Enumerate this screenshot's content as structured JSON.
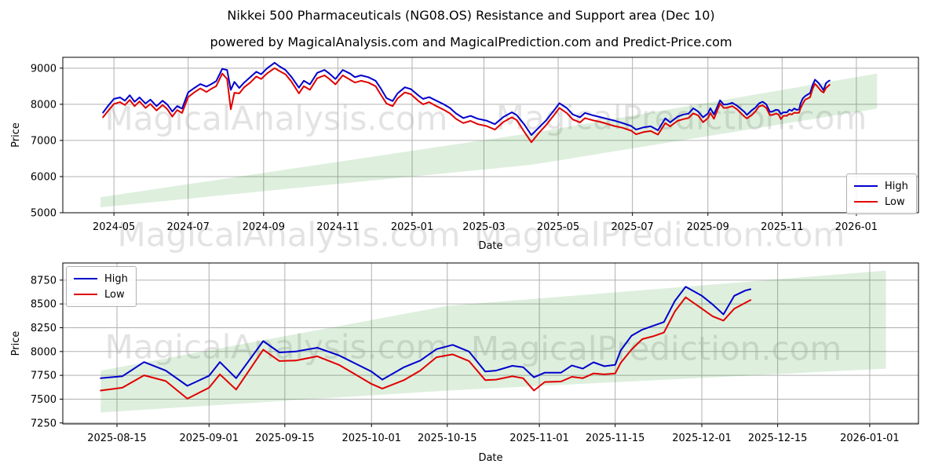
{
  "page": {
    "title": "Nikkei 500 Pharmaceuticals (NG08.OS) Resistance and Support area (Dec 10)",
    "subtitle": "powered by MagicalAnalysis.com and MagicalPrediction.com and Predict-Price.com"
  },
  "watermarks": {
    "analysis": "MagicalAnalysis.com",
    "prediction": "MagicalPrediction.com"
  },
  "colors": {
    "high": "#0000cc",
    "low": "#e00000",
    "band_fill": "#008000",
    "band_opacity": "0.13",
    "grid": "#b0b0b0",
    "spine": "#000000",
    "text": "#000000"
  },
  "chart_data": [
    {
      "type": "line",
      "xlabel": "Date",
      "ylabel": "Price",
      "xlim": [
        "2024-03-20",
        "2026-02-21"
      ],
      "ylim": [
        5000,
        9300
      ],
      "yticks": [
        5000,
        6000,
        7000,
        8000,
        9000
      ],
      "xticks": [
        {
          "date": "2024-05-01",
          "label": "2024-05"
        },
        {
          "date": "2024-07-01",
          "label": "2024-07"
        },
        {
          "date": "2024-09-01",
          "label": "2024-09"
        },
        {
          "date": "2024-11-01",
          "label": "2024-11"
        },
        {
          "date": "2025-01-01",
          "label": "2025-01"
        },
        {
          "date": "2025-03-01",
          "label": "2025-03"
        },
        {
          "date": "2025-05-01",
          "label": "2025-05"
        },
        {
          "date": "2025-07-01",
          "label": "2025-07"
        },
        {
          "date": "2025-09-01",
          "label": "2025-09"
        },
        {
          "date": "2025-11-01",
          "label": "2025-11"
        },
        {
          "date": "2026-01-01",
          "label": "2026-01"
        }
      ],
      "legend": {
        "position": "lower-right"
      },
      "band": {
        "dates": [
          "2024-04-20",
          "2025-04-10",
          "2026-01-18"
        ],
        "top": [
          5430,
          7210,
          8850
        ],
        "bottom": [
          5150,
          6330,
          7880
        ]
      },
      "dates": [
        "2024-04-22",
        "2024-04-26",
        "2024-05-01",
        "2024-05-06",
        "2024-05-10",
        "2024-05-14",
        "2024-05-18",
        "2024-05-22",
        "2024-05-27",
        "2024-05-31",
        "2024-06-05",
        "2024-06-10",
        "2024-06-14",
        "2024-06-18",
        "2024-06-22",
        "2024-06-26",
        "2024-07-01",
        "2024-07-06",
        "2024-07-11",
        "2024-07-16",
        "2024-07-20",
        "2024-07-24",
        "2024-07-29",
        "2024-08-02",
        "2024-08-05",
        "2024-08-08",
        "2024-08-12",
        "2024-08-16",
        "2024-08-21",
        "2024-08-26",
        "2024-08-30",
        "2024-09-04",
        "2024-09-10",
        "2024-09-14",
        "2024-09-19",
        "2024-09-24",
        "2024-09-30",
        "2024-10-04",
        "2024-10-09",
        "2024-10-15",
        "2024-10-21",
        "2024-10-25",
        "2024-10-30",
        "2024-11-05",
        "2024-11-11",
        "2024-11-15",
        "2024-11-20",
        "2024-11-26",
        "2024-12-02",
        "2024-12-06",
        "2024-12-11",
        "2024-12-16",
        "2024-12-20",
        "2024-12-26",
        "2024-12-31",
        "2025-01-06",
        "2025-01-10",
        "2025-01-15",
        "2025-01-21",
        "2025-01-27",
        "2025-02-01",
        "2025-02-06",
        "2025-02-12",
        "2025-02-18",
        "2025-02-24",
        "2025-03-03",
        "2025-03-10",
        "2025-03-17",
        "2025-03-24",
        "2025-03-28",
        "2025-04-03",
        "2025-04-09",
        "2025-04-15",
        "2025-04-21",
        "2025-04-28",
        "2025-05-02",
        "2025-05-08",
        "2025-05-13",
        "2025-05-19",
        "2025-05-23",
        "2025-05-29",
        "2025-06-04",
        "2025-06-10",
        "2025-06-16",
        "2025-06-23",
        "2025-06-30",
        "2025-07-04",
        "2025-07-10",
        "2025-07-16",
        "2025-07-22",
        "2025-07-28",
        "2025-08-01",
        "2025-08-07",
        "2025-08-12",
        "2025-08-16",
        "2025-08-20",
        "2025-08-24",
        "2025-08-28",
        "2025-09-01",
        "2025-09-03",
        "2025-09-06",
        "2025-09-11",
        "2025-09-14",
        "2025-09-17",
        "2025-09-21",
        "2025-09-25",
        "2025-09-28",
        "2025-10-01",
        "2025-10-03",
        "2025-10-07",
        "2025-10-10",
        "2025-10-13",
        "2025-10-16",
        "2025-10-19",
        "2025-10-22",
        "2025-10-24",
        "2025-10-27",
        "2025-10-29",
        "2025-10-31",
        "2025-11-02",
        "2025-11-05",
        "2025-11-07",
        "2025-11-09",
        "2025-11-11",
        "2025-11-13",
        "2025-11-15",
        "2025-11-16",
        "2025-11-18",
        "2025-11-20",
        "2025-11-22",
        "2025-11-24",
        "2025-11-26",
        "2025-11-28",
        "2025-12-01",
        "2025-12-03",
        "2025-12-05",
        "2025-12-07",
        "2025-12-09",
        "2025-12-10"
      ],
      "series": [
        {
          "name": "High",
          "color_key": "high",
          "values": [
            7770,
            7950,
            8150,
            8190,
            8100,
            8250,
            8070,
            8190,
            8020,
            8130,
            7950,
            8100,
            7990,
            7800,
            7950,
            7880,
            8330,
            8450,
            8560,
            8490,
            8560,
            8640,
            8980,
            8950,
            8400,
            8620,
            8450,
            8600,
            8750,
            8900,
            8830,
            9000,
            9150,
            9050,
            8950,
            8750,
            8460,
            8650,
            8550,
            8870,
            8950,
            8850,
            8700,
            8950,
            8850,
            8750,
            8800,
            8750,
            8650,
            8450,
            8170,
            8090,
            8300,
            8470,
            8420,
            8250,
            8150,
            8200,
            8100,
            8000,
            7900,
            7750,
            7620,
            7680,
            7600,
            7550,
            7450,
            7650,
            7780,
            7700,
            7450,
            7150,
            7350,
            7550,
            7850,
            8030,
            7900,
            7720,
            7640,
            7760,
            7700,
            7650,
            7600,
            7550,
            7480,
            7400,
            7300,
            7360,
            7390,
            7280,
            7610,
            7500,
            7655,
            7720,
            7740,
            7890,
            7800,
            7640,
            7745,
            7890,
            7720,
            8110,
            7990,
            8000,
            8040,
            7960,
            7875,
            7790,
            7705,
            7835,
            7905,
            8025,
            8070,
            8000,
            7790,
            7800,
            7850,
            7836,
            7730,
            7778,
            7778,
            7853,
            7820,
            7887,
            7846,
            7860,
            8010,
            8165,
            8230,
            8270,
            8310,
            8530,
            8680,
            8585,
            8495,
            8390,
            8585,
            8640,
            8655
          ]
        },
        {
          "name": "Low",
          "color_key": "low",
          "values": [
            7640,
            7810,
            8010,
            8060,
            7980,
            8120,
            7950,
            8080,
            7900,
            8010,
            7830,
            7980,
            7860,
            7660,
            7840,
            7760,
            8200,
            8330,
            8440,
            8340,
            8430,
            8500,
            8850,
            8700,
            7860,
            8320,
            8300,
            8470,
            8600,
            8770,
            8700,
            8860,
            9000,
            8920,
            8830,
            8620,
            8300,
            8500,
            8400,
            8720,
            8800,
            8700,
            8550,
            8800,
            8680,
            8600,
            8650,
            8600,
            8500,
            8280,
            8020,
            7950,
            8160,
            8330,
            8280,
            8100,
            8000,
            8060,
            7950,
            7850,
            7750,
            7600,
            7480,
            7540,
            7450,
            7400,
            7300,
            7510,
            7640,
            7560,
            7250,
            6950,
            7200,
            7420,
            7720,
            7900,
            7760,
            7580,
            7500,
            7620,
            7560,
            7520,
            7460,
            7400,
            7350,
            7270,
            7170,
            7230,
            7260,
            7160,
            7480,
            7390,
            7540,
            7590,
            7620,
            7750,
            7690,
            7505,
            7620,
            7760,
            7600,
            8020,
            7900,
            7905,
            7950,
            7860,
            7760,
            7660,
            7610,
            7700,
            7800,
            7940,
            7970,
            7900,
            7700,
            7705,
            7740,
            7720,
            7590,
            7680,
            7685,
            7735,
            7720,
            7770,
            7760,
            7770,
            7880,
            8020,
            8130,
            8160,
            8200,
            8420,
            8570,
            8450,
            8370,
            8325,
            8450,
            8510,
            8540
          ]
        }
      ]
    },
    {
      "type": "line",
      "xlabel": "Date",
      "ylabel": "Price",
      "xlim": [
        "2025-08-05",
        "2026-01-10"
      ],
      "ylim": [
        7240,
        8930
      ],
      "yticks": [
        7250,
        7500,
        7750,
        8000,
        8250,
        8500,
        8750
      ],
      "xticks": [
        {
          "date": "2025-08-15",
          "label": "2025-08-15"
        },
        {
          "date": "2025-09-01",
          "label": "2025-09-01"
        },
        {
          "date": "2025-09-15",
          "label": "2025-09-15"
        },
        {
          "date": "2025-10-01",
          "label": "2025-10-01"
        },
        {
          "date": "2025-10-15",
          "label": "2025-10-15"
        },
        {
          "date": "2025-11-01",
          "label": "2025-11-01"
        },
        {
          "date": "2025-11-15",
          "label": "2025-11-15"
        },
        {
          "date": "2025-12-01",
          "label": "2025-12-01"
        },
        {
          "date": "2025-12-15",
          "label": "2025-12-15"
        },
        {
          "date": "2026-01-01",
          "label": "2026-01-01"
        }
      ],
      "legend": {
        "position": "upper-left"
      },
      "band": {
        "dates": [
          "2025-08-12",
          "2025-10-15",
          "2026-01-04"
        ],
        "top": [
          7800,
          8480,
          8850
        ],
        "bottom": [
          7360,
          7590,
          7820
        ]
      },
      "dates": [
        "2025-08-12",
        "2025-08-16",
        "2025-08-20",
        "2025-08-24",
        "2025-08-28",
        "2025-09-01",
        "2025-09-03",
        "2025-09-06",
        "2025-09-11",
        "2025-09-14",
        "2025-09-17",
        "2025-09-21",
        "2025-09-25",
        "2025-09-28",
        "2025-10-01",
        "2025-10-03",
        "2025-10-07",
        "2025-10-10",
        "2025-10-13",
        "2025-10-16",
        "2025-10-19",
        "2025-10-22",
        "2025-10-24",
        "2025-10-27",
        "2025-10-29",
        "2025-10-31",
        "2025-11-02",
        "2025-11-05",
        "2025-11-07",
        "2025-11-09",
        "2025-11-11",
        "2025-11-13",
        "2025-11-15",
        "2025-11-16",
        "2025-11-18",
        "2025-11-20",
        "2025-11-22",
        "2025-11-24",
        "2025-11-26",
        "2025-11-28",
        "2025-12-01",
        "2025-12-03",
        "2025-12-05",
        "2025-12-07",
        "2025-12-09",
        "2025-12-10"
      ],
      "series": [
        {
          "name": "High",
          "color_key": "high",
          "values": [
            7720,
            7740,
            7890,
            7800,
            7640,
            7745,
            7890,
            7720,
            8110,
            7990,
            8000,
            8040,
            7960,
            7875,
            7790,
            7705,
            7835,
            7905,
            8025,
            8070,
            8000,
            7790,
            7800,
            7850,
            7836,
            7730,
            7778,
            7778,
            7853,
            7820,
            7887,
            7846,
            7860,
            8010,
            8165,
            8230,
            8270,
            8310,
            8530,
            8680,
            8585,
            8495,
            8390,
            8585,
            8640,
            8655
          ]
        },
        {
          "name": "Low",
          "color_key": "low",
          "values": [
            7590,
            7620,
            7750,
            7690,
            7505,
            7620,
            7760,
            7600,
            8020,
            7900,
            7905,
            7950,
            7860,
            7760,
            7660,
            7610,
            7700,
            7800,
            7940,
            7970,
            7900,
            7700,
            7705,
            7740,
            7720,
            7590,
            7680,
            7685,
            7735,
            7720,
            7770,
            7760,
            7770,
            7880,
            8020,
            8130,
            8160,
            8200,
            8420,
            8570,
            8450,
            8370,
            8325,
            8450,
            8510,
            8540
          ]
        }
      ]
    }
  ]
}
